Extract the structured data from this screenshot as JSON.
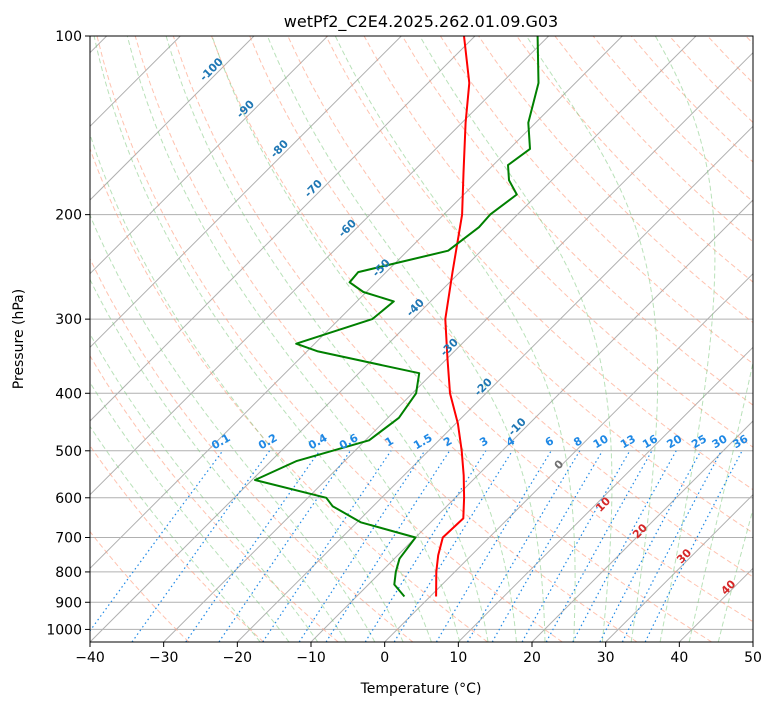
{
  "chart_data": {
    "type": "skew-t",
    "title": "wetPf2_C2E4.2025.262.01.09.G03",
    "xlabel": "Temperature (°C)",
    "ylabel": "Pressure (hPa)",
    "xlim": [
      -40,
      50
    ],
    "ylim": [
      1050,
      100
    ],
    "x_ticks": [
      -40,
      -30,
      -20,
      -10,
      0,
      10,
      20,
      30,
      40,
      50
    ],
    "y_ticks": [
      100,
      200,
      300,
      400,
      500,
      600,
      700,
      800,
      900,
      1000
    ],
    "series": [
      {
        "name": "temperature",
        "color": "#ff0000",
        "points": [
          {
            "p": 880,
            "t": 0.8
          },
          {
            "p": 800,
            "t": -2.5
          },
          {
            "p": 750,
            "t": -4.5
          },
          {
            "p": 700,
            "t": -6.3
          },
          {
            "p": 650,
            "t": -6.1
          },
          {
            "p": 600,
            "t": -8.8
          },
          {
            "p": 550,
            "t": -11.9
          },
          {
            "p": 500,
            "t": -15.5
          },
          {
            "p": 450,
            "t": -19.7
          },
          {
            "p": 400,
            "t": -24.9
          },
          {
            "p": 350,
            "t": -29.9
          },
          {
            "p": 300,
            "t": -35.6
          },
          {
            "p": 250,
            "t": -41.0
          },
          {
            "p": 200,
            "t": -47.5
          },
          {
            "p": 170,
            "t": -53.0
          },
          {
            "p": 140,
            "t": -59.5
          },
          {
            "p": 120,
            "t": -64.4
          },
          {
            "p": 100,
            "t": -71.5
          }
        ]
      },
      {
        "name": "dewpoint",
        "color": "#008000",
        "points": [
          {
            "p": 880,
            "t": -3.5
          },
          {
            "p": 840,
            "t": -6.5
          },
          {
            "p": 800,
            "t": -8.0
          },
          {
            "p": 760,
            "t": -9.3
          },
          {
            "p": 700,
            "t": -10.0
          },
          {
            "p": 660,
            "t": -19.5
          },
          {
            "p": 620,
            "t": -25.5
          },
          {
            "p": 600,
            "t": -27.5
          },
          {
            "p": 560,
            "t": -39.6
          },
          {
            "p": 520,
            "t": -36.5
          },
          {
            "p": 480,
            "t": -29.5
          },
          {
            "p": 440,
            "t": -28.5
          },
          {
            "p": 400,
            "t": -29.5
          },
          {
            "p": 370,
            "t": -31.8
          },
          {
            "p": 340,
            "t": -48.5
          },
          {
            "p": 330,
            "t": -52.5
          },
          {
            "p": 300,
            "t": -45.5
          },
          {
            "p": 280,
            "t": -45.0
          },
          {
            "p": 270,
            "t": -50.4
          },
          {
            "p": 260,
            "t": -53.6
          },
          {
            "p": 250,
            "t": -53.8
          },
          {
            "p": 230,
            "t": -44.5
          },
          {
            "p": 210,
            "t": -43.5
          },
          {
            "p": 200,
            "t": -43.7
          },
          {
            "p": 185,
            "t": -42.8
          },
          {
            "p": 175,
            "t": -45.8
          },
          {
            "p": 165,
            "t": -48.0
          },
          {
            "p": 155,
            "t": -47.2
          },
          {
            "p": 140,
            "t": -51.0
          },
          {
            "p": 120,
            "t": -55.0
          },
          {
            "p": 100,
            "t": -61.5
          }
        ]
      }
    ],
    "dry_adiabat_labels": [
      "-100",
      "-90",
      "-80",
      "-70",
      "-60",
      "-50",
      "-40",
      "-30",
      "-20",
      "-10"
    ],
    "mixing_ratio_labels": [
      "0.1",
      "0.2",
      "0.4",
      "0.6",
      "1",
      "1.5",
      "2",
      "3",
      "4",
      "6",
      "8",
      "10",
      "13",
      "16",
      "20",
      "25",
      "30",
      "36"
    ],
    "moist_adiabat_labels": [
      "0",
      "10",
      "20",
      "30",
      "40"
    ],
    "mixing_ratio_values": [
      0.1,
      0.2,
      0.4,
      0.6,
      1,
      1.5,
      2,
      3,
      4,
      6,
      8,
      10,
      13,
      16,
      20,
      25,
      30,
      36
    ],
    "dry_adiabat_values": [
      -100,
      -90,
      -80,
      -70,
      -60,
      -50,
      -40,
      -30,
      -20,
      -10
    ],
    "moist_adiabat_values": [
      0,
      10,
      20,
      30,
      40
    ],
    "isotherm_values": [
      -150,
      -140,
      -130,
      -120,
      -110,
      -100,
      -90,
      -80,
      -70,
      -60,
      -50,
      -40,
      -30,
      -20,
      -10,
      0,
      10,
      20,
      30,
      40,
      50
    ],
    "colors": {
      "isotherm": "#b0b0b0",
      "dry_adiabat": "#ff9a7a",
      "moist_adiabat": "#7fc97f",
      "mixing_ratio": "#1e88e5",
      "dry_label": "#1f77b4",
      "moist_label_cold": "#707070",
      "moist_label_warm": "#d62728"
    }
  }
}
